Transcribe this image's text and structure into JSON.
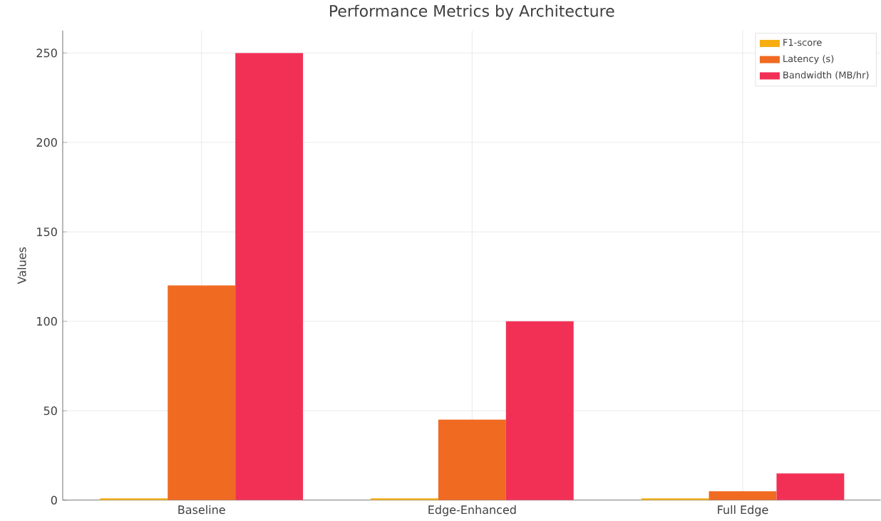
{
  "chart_data": {
    "type": "bar",
    "title": "Performance Metrics by Architecture",
    "ylabel": "Values",
    "categories": [
      "Baseline",
      "Edge-Enhanced",
      "Full Edge"
    ],
    "series": [
      {
        "name": "F1-score",
        "color": "#f5ad10",
        "values": [
          1,
          1,
          1
        ]
      },
      {
        "name": "Latency (s)",
        "color": "#f06a22",
        "values": [
          120,
          45,
          5
        ]
      },
      {
        "name": "Bandwidth (MB/hr)",
        "color": "#f23056",
        "values": [
          250,
          100,
          15
        ]
      }
    ],
    "ylim": [
      0,
      262.5
    ],
    "yticks": [
      0,
      50,
      100,
      150,
      200,
      250
    ],
    "grid": true,
    "legend": "top right"
  }
}
